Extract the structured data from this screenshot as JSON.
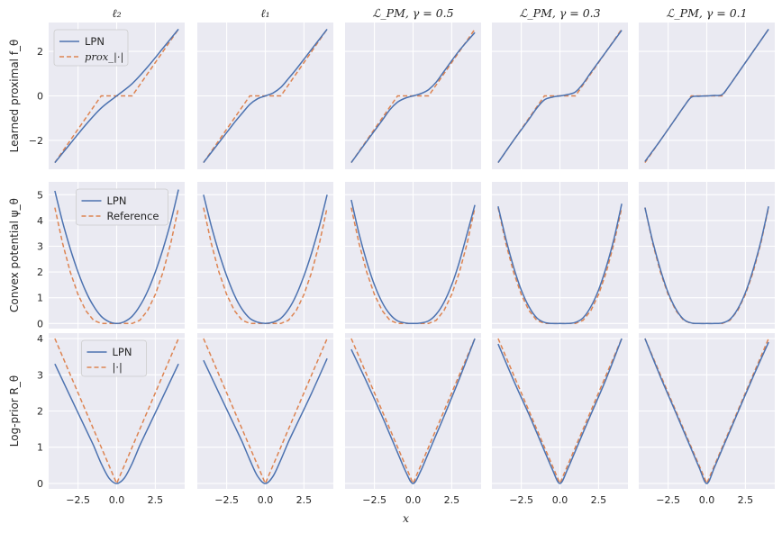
{
  "figure": {
    "column_titles": [
      "ℓ₂",
      "ℓ₁",
      "ℒ_PM, γ = 0.5",
      "ℒ_PM, γ = 0.3",
      "ℒ_PM, γ = 0.1"
    ],
    "row_labels": [
      "Learned proximal f_θ",
      "Convex potential ψ_θ",
      "Log-prior R_θ"
    ],
    "xlabel": "x",
    "colors": {
      "LPN": "#4c72b0",
      "Reference": "#dd8452",
      "panel_bg": "#eaeaf2",
      "grid": "#ffffff"
    }
  },
  "chart_data": {
    "type": "line",
    "layout": "grid 3 rows x 5 columns, shared x axis",
    "x_range": [
      -4,
      4
    ],
    "xticks": [
      -2.5,
      0.0,
      2.5
    ],
    "xtick_labels": [
      "−2.5",
      "0.0",
      "2.5"
    ],
    "rows": [
      {
        "name": "Learned proximal f_θ",
        "ylim": [
          -3.3,
          3.3
        ],
        "yticks": [
          -2,
          0,
          2
        ],
        "ytick_labels": [
          "−2",
          "0",
          "2"
        ],
        "legend": {
          "panel": 0,
          "location": "upper-left",
          "entries": [
            "LPN",
            "prox_|·|"
          ]
        },
        "reference": {
          "name": "prox_|·|",
          "x": [
            -4,
            -1,
            1,
            4
          ],
          "y": [
            -3,
            0,
            0,
            3
          ]
        },
        "panels": [
          {
            "x": [
              -4,
              -3,
              -2,
              -1,
              0,
              1,
              2,
              3,
              4
            ],
            "lpn": [
              -3.0,
              -2.15,
              -1.3,
              -0.55,
              0.0,
              0.55,
              1.3,
              2.15,
              3.0
            ]
          },
          {
            "x": [
              -4,
              -3,
              -2,
              -1.5,
              -1,
              -0.5,
              0,
              0.5,
              1,
              1.5,
              2,
              3,
              4
            ],
            "lpn": [
              -3.0,
              -2.1,
              -1.2,
              -0.78,
              -0.38,
              -0.13,
              0.0,
              0.13,
              0.38,
              0.78,
              1.2,
              2.1,
              3.0
            ]
          },
          {
            "x": [
              -4,
              -3,
              -2,
              -1.5,
              -1,
              -0.5,
              0,
              0.5,
              1,
              1.5,
              2,
              3,
              4
            ],
            "lpn": [
              -3.0,
              -2.05,
              -1.1,
              -0.62,
              -0.28,
              -0.1,
              0.0,
              0.1,
              0.28,
              0.62,
              1.1,
              2.05,
              2.85
            ]
          },
          {
            "x": [
              -4,
              -3,
              -2,
              -1.5,
              -1,
              -0.5,
              0,
              0.5,
              1,
              1.5,
              2,
              3,
              4
            ],
            "lpn": [
              -3.0,
              -2.0,
              -1.05,
              -0.55,
              -0.18,
              -0.06,
              0.0,
              0.06,
              0.18,
              0.55,
              1.05,
              2.0,
              2.95
            ]
          },
          {
            "x": [
              -4,
              -3,
              -2,
              -1.5,
              -1,
              -0.5,
              0,
              0.5,
              1,
              1.5,
              2,
              3,
              4
            ],
            "lpn": [
              -2.95,
              -2.0,
              -1.0,
              -0.5,
              -0.06,
              -0.02,
              0.0,
              0.02,
              0.06,
              0.5,
              1.0,
              2.0,
              3.0
            ]
          }
        ]
      },
      {
        "name": "Convex potential ψ_θ",
        "ylim": [
          -0.2,
          5.5
        ],
        "yticks": [
          0,
          1,
          2,
          3,
          4,
          5
        ],
        "ytick_labels": [
          "0",
          "1",
          "2",
          "3",
          "4",
          "5"
        ],
        "legend": {
          "panel": 0,
          "location": "upper-center",
          "entries": [
            "LPN",
            "Reference"
          ]
        },
        "reference": {
          "name": "Reference",
          "x": [
            -4,
            -3.5,
            -3,
            -2.5,
            -2,
            -1.5,
            -1,
            -0.5,
            0,
            0.5,
            1,
            1.5,
            2,
            2.5,
            3,
            3.5,
            4
          ],
          "y": [
            4.5,
            3.125,
            2.0,
            1.125,
            0.5,
            0.125,
            0.0,
            0.0,
            0.0,
            0.0,
            0.0,
            0.125,
            0.5,
            1.125,
            2.0,
            3.125,
            4.5
          ]
        },
        "panels": [
          {
            "x": [
              -4,
              -3.5,
              -3,
              -2.5,
              -2,
              -1.5,
              -1,
              -0.5,
              0,
              0.5,
              1,
              1.5,
              2,
              2.5,
              3,
              3.5,
              4
            ],
            "lpn": [
              5.15,
              3.95,
              2.9,
              2.0,
              1.25,
              0.68,
              0.28,
              0.07,
              0.0,
              0.07,
              0.28,
              0.68,
              1.25,
              2.0,
              2.9,
              3.95,
              5.2
            ]
          },
          {
            "x": [
              -4,
              -3.5,
              -3,
              -2.5,
              -2,
              -1.5,
              -1,
              -0.5,
              0,
              0.5,
              1,
              1.5,
              2,
              2.5,
              3,
              3.5,
              4
            ],
            "lpn": [
              5.0,
              3.8,
              2.75,
              1.85,
              1.1,
              0.55,
              0.2,
              0.05,
              0.0,
              0.05,
              0.2,
              0.55,
              1.1,
              1.85,
              2.75,
              3.8,
              5.0
            ]
          },
          {
            "x": [
              -4,
              -3.5,
              -3,
              -2.5,
              -2,
              -1.5,
              -1,
              -0.5,
              0,
              0.5,
              1,
              1.5,
              2,
              2.5,
              3,
              3.5,
              4
            ],
            "lpn": [
              4.8,
              3.5,
              2.4,
              1.5,
              0.82,
              0.36,
              0.1,
              0.02,
              0.0,
              0.02,
              0.1,
              0.36,
              0.82,
              1.5,
              2.4,
              3.5,
              4.6
            ]
          },
          {
            "x": [
              -4,
              -3.5,
              -3,
              -2.5,
              -2,
              -1.5,
              -1,
              -0.5,
              0,
              0.5,
              1,
              1.5,
              2,
              2.5,
              3,
              3.5,
              4
            ],
            "lpn": [
              4.55,
              3.3,
              2.2,
              1.3,
              0.65,
              0.22,
              0.04,
              0.0,
              0.0,
              0.0,
              0.04,
              0.22,
              0.65,
              1.3,
              2.2,
              3.3,
              4.65
            ]
          },
          {
            "x": [
              -4,
              -3.5,
              -3,
              -2.5,
              -2,
              -1.5,
              -1,
              -0.5,
              0,
              0.5,
              1,
              1.5,
              2,
              2.5,
              3,
              3.5,
              4
            ],
            "lpn": [
              4.5,
              3.2,
              2.1,
              1.2,
              0.56,
              0.16,
              0.02,
              0.0,
              0.0,
              0.0,
              0.02,
              0.16,
              0.56,
              1.2,
              2.1,
              3.2,
              4.55
            ]
          }
        ]
      },
      {
        "name": "Log-prior R_θ",
        "ylim": [
          -0.15,
          4.15
        ],
        "yticks": [
          0,
          1,
          2,
          3,
          4
        ],
        "ytick_labels": [
          "0",
          "1",
          "2",
          "3",
          "4"
        ],
        "legend": {
          "panel": 0,
          "location": "upper-center",
          "entries": [
            "LPN",
            "|·|"
          ]
        },
        "reference": {
          "name": "|·|",
          "x": [
            -4,
            0,
            4
          ],
          "y": [
            4,
            0,
            4
          ]
        },
        "panels": [
          {
            "x": [
              -4,
              -3,
              -2,
              -1.5,
              -1,
              -0.5,
              0,
              0.5,
              1,
              1.5,
              2,
              3,
              4
            ],
            "lpn": [
              3.3,
              2.4,
              1.5,
              1.05,
              0.55,
              0.15,
              0.0,
              0.15,
              0.55,
              1.05,
              1.5,
              2.4,
              3.3
            ]
          },
          {
            "x": [
              -4,
              -3,
              -2,
              -1.5,
              -1,
              -0.5,
              0,
              0.5,
              1,
              1.5,
              2,
              3,
              4
            ],
            "lpn": [
              3.4,
              2.5,
              1.6,
              1.15,
              0.65,
              0.2,
              0.0,
              0.2,
              0.65,
              1.15,
              1.6,
              2.5,
              3.45
            ]
          },
          {
            "x": [
              -4,
              -3,
              -2,
              -1.5,
              -1,
              -0.5,
              0,
              0.5,
              1,
              1.5,
              2,
              3,
              4
            ],
            "lpn": [
              3.7,
              2.8,
              1.85,
              1.35,
              0.85,
              0.35,
              0.0,
              0.35,
              0.85,
              1.35,
              1.85,
              2.9,
              4.0
            ]
          },
          {
            "x": [
              -4,
              -3,
              -2,
              -1.5,
              -1,
              -0.5,
              0,
              0.5,
              1,
              1.5,
              2,
              3,
              4
            ],
            "lpn": [
              3.85,
              2.85,
              1.9,
              1.4,
              0.9,
              0.4,
              0.0,
              0.4,
              0.9,
              1.4,
              1.9,
              2.9,
              4.0
            ]
          },
          {
            "x": [
              -4,
              -3,
              -2,
              -1,
              -0.5,
              0,
              0.5,
              1,
              2,
              3,
              4
            ],
            "lpn": [
              4.0,
              2.95,
              1.95,
              0.95,
              0.45,
              0.0,
              0.45,
              0.95,
              1.95,
              2.95,
              3.9
            ]
          }
        ]
      }
    ]
  }
}
